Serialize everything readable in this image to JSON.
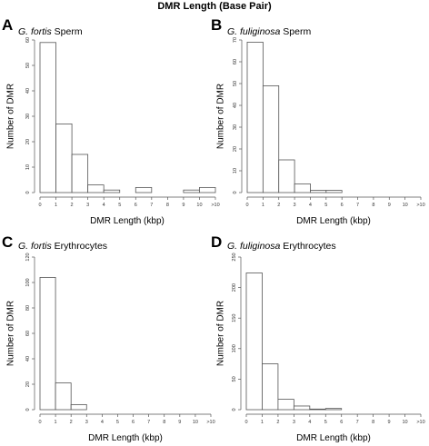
{
  "figure": {
    "title": "DMR Length (Base Pair)"
  },
  "chart_data": [
    {
      "type": "bar",
      "panel": "A",
      "title_species": "G. fortis",
      "title_tissue": "Sperm",
      "xlabel": "DMR Length (kbp)",
      "ylabel": "Number of DMR",
      "x_ticks": [
        "0",
        "1",
        "2",
        "3",
        "4",
        "5",
        "6",
        "7",
        "8",
        "9",
        "10",
        ">10"
      ],
      "y_ticks": [
        "0",
        "10",
        "20",
        "30",
        "40",
        "50",
        "60"
      ],
      "ylim": [
        0,
        60
      ],
      "bins": [
        "0-1",
        "1-2",
        "2-3",
        "3-4",
        "4-5",
        "5-6",
        "6-7",
        "7-8",
        "8-9",
        "9-10",
        "10->10"
      ],
      "values": [
        59,
        27,
        15,
        3,
        1,
        0,
        2,
        0,
        0,
        1,
        2
      ]
    },
    {
      "type": "bar",
      "panel": "B",
      "title_species": "G. fuliginosa",
      "title_tissue": "Sperm",
      "xlabel": "DMR Length (kbp)",
      "ylabel": "Number of DMR",
      "x_ticks": [
        "0",
        "1",
        "2",
        "3",
        "4",
        "5",
        "6",
        "7",
        "8",
        "9",
        "10",
        ">10"
      ],
      "y_ticks": [
        "0",
        "10",
        "20",
        "30",
        "40",
        "50",
        "60",
        "70"
      ],
      "ylim": [
        0,
        70
      ],
      "bins": [
        "0-1",
        "1-2",
        "2-3",
        "3-4",
        "4-5",
        "5-6",
        "6-7",
        "7-8",
        "8-9",
        "9-10",
        "10->10"
      ],
      "values": [
        69,
        49,
        15,
        4,
        1,
        1,
        0,
        0,
        0,
        0,
        0
      ]
    },
    {
      "type": "bar",
      "panel": "C",
      "title_species": "G. fortis",
      "title_tissue": "Erythrocytes",
      "xlabel": "DMR Length (kbp)",
      "ylabel": "Number of DMR",
      "x_ticks": [
        "0",
        "1",
        "2",
        "3",
        "4",
        "5",
        "6",
        "7",
        "8",
        "9",
        "10",
        ">10"
      ],
      "y_ticks": [
        "0",
        "20",
        "40",
        "60",
        "80",
        "100",
        "120"
      ],
      "ylim": [
        0,
        120
      ],
      "bins": [
        "0-1",
        "1-2",
        "2-3",
        "3-4",
        "4-5",
        "5-6",
        "6-7",
        "7-8",
        "8-9",
        "9-10",
        "10->10"
      ],
      "values": [
        104,
        21,
        4,
        0,
        0,
        0,
        0,
        0,
        0,
        0,
        0
      ]
    },
    {
      "type": "bar",
      "panel": "D",
      "title_species": "G. fuliginosa",
      "title_tissue": "Erythrocytes",
      "xlabel": "DMR Length (kbp)",
      "ylabel": "Number of DMR",
      "x_ticks": [
        "0",
        "1",
        "2",
        "3",
        "4",
        "5",
        "6",
        "7",
        "8",
        "9",
        "10",
        ">10"
      ],
      "y_ticks": [
        "0",
        "50",
        "100",
        "150",
        "200",
        "250"
      ],
      "ylim": [
        0,
        250
      ],
      "bins": [
        "0-1",
        "1-2",
        "2-3",
        "3-4",
        "4-5",
        "5-6",
        "6-7",
        "7-8",
        "8-9",
        "9-10",
        "10->10"
      ],
      "values": [
        224,
        75,
        17,
        6,
        1,
        2,
        0,
        0,
        0,
        0,
        0
      ]
    }
  ]
}
